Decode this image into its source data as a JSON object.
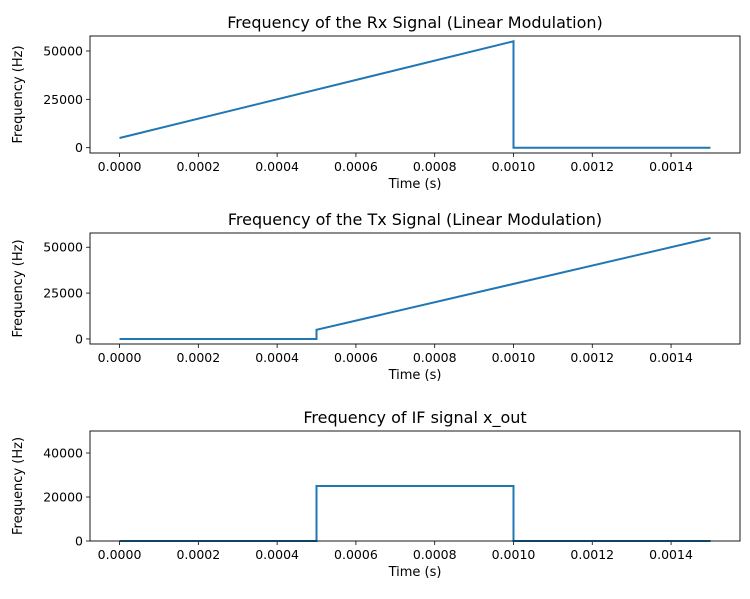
{
  "chart_data": [
    {
      "type": "line",
      "title": "Frequency of the Rx Signal (Linear Modulation)",
      "xlabel": "Time (s)",
      "ylabel": "Frequency (Hz)",
      "xlim": [
        -7.5e-05,
        0.001575
      ],
      "ylim": [
        -2750,
        57750
      ],
      "xticks": [
        "0.0000",
        "0.0002",
        "0.0004",
        "0.0006",
        "0.0008",
        "0.0010",
        "0.0012",
        "0.0014"
      ],
      "xtick_values": [
        0,
        0.0002,
        0.0004,
        0.0006,
        0.0008,
        0.001,
        0.0012,
        0.0014
      ],
      "yticks": [
        "0",
        "25000",
        "50000"
      ],
      "ytick_values": [
        0,
        25000,
        50000
      ],
      "series": [
        {
          "name": "rx",
          "color": "#1f77b4",
          "x": [
            0,
            0.001,
            0.001,
            0.0015
          ],
          "y": [
            5000,
            55000,
            0,
            0
          ]
        }
      ]
    },
    {
      "type": "line",
      "title": "Frequency of the Tx Signal (Linear Modulation)",
      "xlabel": "Time (s)",
      "ylabel": "Frequency (Hz)",
      "xlim": [
        -7.5e-05,
        0.001575
      ],
      "ylim": [
        -2750,
        57750
      ],
      "xticks": [
        "0.0000",
        "0.0002",
        "0.0004",
        "0.0006",
        "0.0008",
        "0.0010",
        "0.0012",
        "0.0014"
      ],
      "xtick_values": [
        0,
        0.0002,
        0.0004,
        0.0006,
        0.0008,
        0.001,
        0.0012,
        0.0014
      ],
      "yticks": [
        "0",
        "25000",
        "50000"
      ],
      "ytick_values": [
        0,
        25000,
        50000
      ],
      "series": [
        {
          "name": "tx",
          "color": "#1f77b4",
          "x": [
            0,
            0.0005,
            0.0005,
            0.0015
          ],
          "y": [
            0,
            0,
            5000,
            55000
          ]
        }
      ]
    },
    {
      "type": "line",
      "title": "Frequency of IF signal x_out",
      "xlabel": "Time (s)",
      "ylabel": "Frequency (Hz)",
      "xlim": [
        -7.5e-05,
        0.001575
      ],
      "ylim": [
        0,
        50000
      ],
      "xticks": [
        "0.0000",
        "0.0002",
        "0.0004",
        "0.0006",
        "0.0008",
        "0.0010",
        "0.0012",
        "0.0014"
      ],
      "xtick_values": [
        0,
        0.0002,
        0.0004,
        0.0006,
        0.0008,
        0.001,
        0.0012,
        0.0014
      ],
      "yticks": [
        "0",
        "20000",
        "40000"
      ],
      "ytick_values": [
        0,
        20000,
        40000
      ],
      "series": [
        {
          "name": "if",
          "color": "#1f77b4",
          "x": [
            0,
            0.0005,
            0.0005,
            0.001,
            0.001,
            0.0015
          ],
          "y": [
            0,
            0,
            25000,
            25000,
            0,
            0
          ]
        }
      ]
    }
  ]
}
